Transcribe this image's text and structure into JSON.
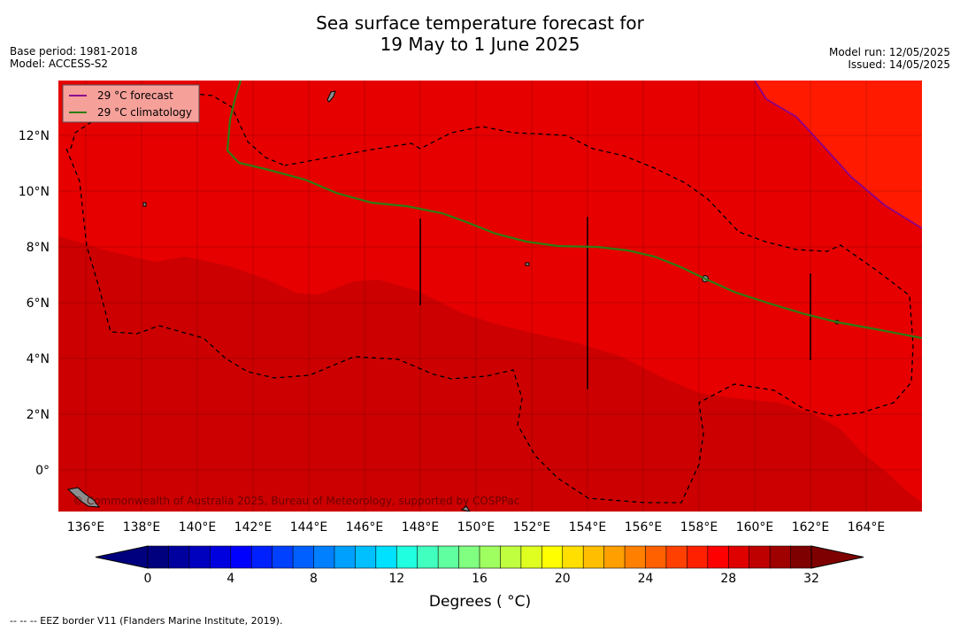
{
  "title": {
    "line1": "Sea surface temperature forecast for",
    "line2": "19 May to 1 June 2025"
  },
  "meta_left": {
    "base_period": "Base period: 1981-2018",
    "model": "Model: ACCESS-S2"
  },
  "meta_right": {
    "model_run": "Model run: 12/05/2025",
    "issued": "Issued: 14/05/2025"
  },
  "legend": {
    "forecast": {
      "label": "29 °C  forecast",
      "color": "#8b008b"
    },
    "climatology": {
      "label": "29 °C  climatology",
      "color": "#2e7d12"
    }
  },
  "map": {
    "lon_ticks": [
      "136°E",
      "138°E",
      "140°E",
      "142°E",
      "144°E",
      "146°E",
      "148°E",
      "150°E",
      "152°E",
      "154°E",
      "156°E",
      "158°E",
      "160°E",
      "162°E",
      "164°E"
    ],
    "lat_ticks": [
      "12°N",
      "10°N",
      "8°N",
      "6°N",
      "4°N",
      "2°N",
      "0°"
    ],
    "copyright": "© Commonwealth of Australia 2025, Bureau of Meteorology, supported by COSPPac",
    "colors": {
      "temp_31": "#cc0000",
      "temp_30": "#e60000",
      "temp_29": "#ff1a00"
    }
  },
  "colorbar": {
    "tick_labels": [
      "0",
      "4",
      "8",
      "12",
      "16",
      "20",
      "24",
      "28",
      "32"
    ],
    "label": "Degrees ( °C)",
    "colors": [
      "#00007f",
      "#00009f",
      "#0000bf",
      "#0000df",
      "#0000ff",
      "#0020ff",
      "#0040ff",
      "#0060ff",
      "#0080ff",
      "#00a0ff",
      "#00c0ff",
      "#00e0ff",
      "#20ffdf",
      "#40ffbf",
      "#60ff9f",
      "#80ff80",
      "#a0ff60",
      "#c0ff40",
      "#dfff20",
      "#ffff00",
      "#ffdf00",
      "#ffbf00",
      "#ff9f00",
      "#ff8000",
      "#ff6000",
      "#ff4000",
      "#ff2000",
      "#ff0000",
      "#df0000",
      "#bf0000",
      "#9f0000",
      "#7f0000"
    ],
    "under_color": "#00007f",
    "over_color": "#7f0000"
  },
  "footnote": "--  --  -- EEZ border V11 (Flanders Marine Institute, 2019)."
}
